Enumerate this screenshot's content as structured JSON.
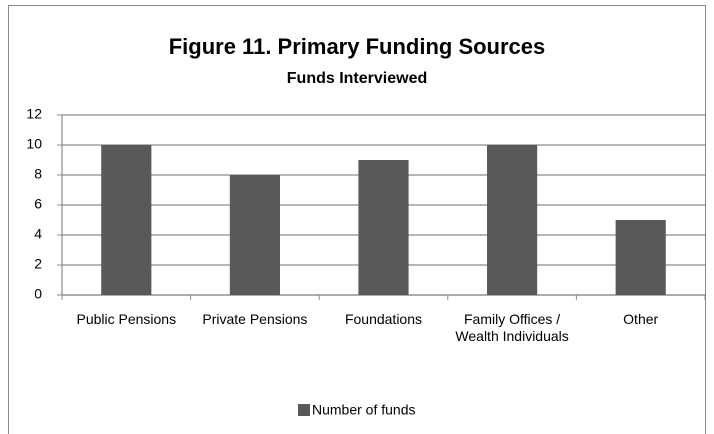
{
  "chart_data": {
    "type": "bar",
    "title": "Figure 11. Primary Funding Sources",
    "subtitle": "Funds Interviewed",
    "categories": [
      "Public Pensions",
      "Private Pensions",
      "Foundations",
      "Family Offices / Wealth Individuals",
      "Other"
    ],
    "series": [
      {
        "name": "Number of funds",
        "color": "#595959",
        "values": [
          10,
          8,
          9,
          10,
          5
        ]
      }
    ],
    "ylim": [
      0,
      12
    ],
    "yticks": [
      0,
      2,
      4,
      6,
      8,
      10,
      12
    ],
    "grid": true,
    "legend": "bottom"
  }
}
